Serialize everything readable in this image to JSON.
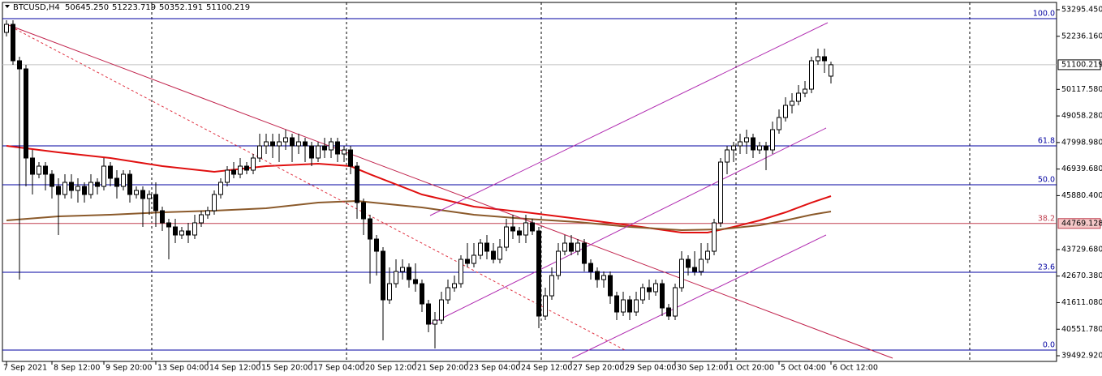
{
  "chart_data": {
    "type": "candlestick",
    "title": "BTCUSD,H4",
    "ohlc_labels": [
      "50645.250",
      "51223.719",
      "50352.191",
      "51100.219"
    ],
    "xlim": [
      -0.625,
      161.75
    ],
    "ylim": [
      39267,
      53683
    ],
    "xticks": [
      {
        "value": 0,
        "label": "7 Sep 2021"
      },
      {
        "value": 7,
        "label": "8 Sep 12:00"
      },
      {
        "value": 15,
        "label": "9 Sep 20:00"
      },
      {
        "value": 23,
        "label": "13 Sep 04:00"
      },
      {
        "value": 31,
        "label": "14 Sep 12:00"
      },
      {
        "value": 39,
        "label": "15 Sep 20:00"
      },
      {
        "value": 47,
        "label": "17 Sep 04:00"
      },
      {
        "value": 55,
        "label": "20 Sep 12:00"
      },
      {
        "value": 63,
        "label": "21 Sep 20:00"
      },
      {
        "value": 71,
        "label": "23 Sep 04:00"
      },
      {
        "value": 79,
        "label": "24 Sep 12:00"
      },
      {
        "value": 87,
        "label": "27 Sep 20:00"
      },
      {
        "value": 95,
        "label": "29 Sep 04:00"
      },
      {
        "value": 103,
        "label": "30 Sep 12:00"
      },
      {
        "value": 111,
        "label": "1 Oct 20:00"
      },
      {
        "value": 119,
        "label": "5 Oct 04:00"
      },
      {
        "value": 127,
        "label": "6 Oct 12:00"
      }
    ],
    "yticks": [
      {
        "value": 53295.45,
        "label": "53295.450"
      },
      {
        "value": 52236.16,
        "label": "52236.160"
      },
      {
        "value": 50117.58,
        "label": "50117.580"
      },
      {
        "value": 49058.28,
        "label": "49058.280"
      },
      {
        "value": 47998.98,
        "label": "47998.980"
      },
      {
        "value": 46939.68,
        "label": "46939.680"
      },
      {
        "value": 45880.4,
        "label": "45880.400"
      },
      {
        "value": 43729.68,
        "label": "43729.680"
      },
      {
        "value": 42670.38,
        "label": "42670.380"
      },
      {
        "value": 41611.08,
        "label": "41611.080"
      },
      {
        "value": 40551.78,
        "label": "40551.780"
      },
      {
        "value": 39492.92,
        "label": "39492.920"
      }
    ],
    "fib_levels": [
      {
        "value": 52940,
        "label": "100.0",
        "color": "#0000a0"
      },
      {
        "value": 47865,
        "label": "61.8",
        "color": "#0000a0"
      },
      {
        "value": 46313,
        "label": "50.0",
        "color": "#0000a0"
      },
      {
        "value": 44769.128,
        "label": "38.2",
        "color": "#c04050"
      },
      {
        "value": 42822,
        "label": "23.6",
        "color": "#0000a0"
      },
      {
        "value": 39719,
        "label": "0.0",
        "color": "#0000a0"
      }
    ],
    "series": [
      {
        "color": "#e01010",
        "x": [
          0,
          8,
          16,
          24,
          32,
          40,
          48,
          53,
          56,
          64,
          72,
          80,
          88,
          96,
          104,
          108,
          112,
          116,
          120,
          124,
          127
        ],
        "values": [
          47864,
          47606,
          47380,
          47056,
          46830,
          47056,
          47153,
          47056,
          46733,
          45925,
          45440,
          45214,
          44955,
          44697,
          44406,
          44406,
          44632,
          44891,
          45214,
          45602,
          45861
        ]
      },
      {
        "color": "#8b5a2b",
        "x": [
          0,
          8,
          16,
          24,
          32,
          40,
          48,
          54,
          64,
          72,
          80,
          88,
          96,
          104,
          110,
          116,
          120,
          124,
          127
        ],
        "values": [
          44891,
          45052,
          45117,
          45214,
          45279,
          45376,
          45602,
          45667,
          45408,
          45117,
          44955,
          44826,
          44632,
          44503,
          44535,
          44697,
          44891,
          45117,
          45247
        ]
      }
    ],
    "candles": [
      [
        52390,
        52875,
        52229,
        52713
      ],
      [
        52713,
        52875,
        51097,
        51259
      ],
      [
        51259,
        51420,
        42531,
        50935
      ],
      [
        50935,
        51097,
        46248,
        47380
      ],
      [
        47380,
        47703,
        45925,
        46733
      ],
      [
        46733,
        47218,
        46572,
        47056
      ],
      [
        47056,
        47218,
        46087,
        46733
      ],
      [
        46733,
        46895,
        45764,
        46248
      ],
      [
        46248,
        46572,
        44309,
        45925
      ],
      [
        45925,
        46733,
        45764,
        46410
      ],
      [
        46410,
        46733,
        45764,
        46087
      ],
      [
        46087,
        46572,
        45602,
        46248
      ],
      [
        46248,
        46410,
        45602,
        45925
      ],
      [
        45925,
        46733,
        45764,
        46410
      ],
      [
        46410,
        46572,
        45925,
        46248
      ],
      [
        46248,
        47380,
        46087,
        47056
      ],
      [
        47056,
        47218,
        46248,
        46572
      ],
      [
        46572,
        46895,
        45764,
        46248
      ],
      [
        46248,
        46895,
        46087,
        46733
      ],
      [
        46733,
        46895,
        45602,
        45925
      ],
      [
        45925,
        46248,
        45764,
        46087
      ],
      [
        46087,
        46248,
        44632,
        45764
      ],
      [
        45764,
        46087,
        45117,
        45925
      ],
      [
        45925,
        46410,
        44632,
        45279
      ],
      [
        45279,
        45440,
        44471,
        44794
      ],
      [
        44794,
        44955,
        43339,
        44632
      ],
      [
        44632,
        44955,
        43986,
        44309
      ],
      [
        44309,
        44632,
        44147,
        44471
      ],
      [
        44471,
        44794,
        43986,
        44309
      ],
      [
        44309,
        45117,
        44147,
        44794
      ],
      [
        44794,
        45279,
        44632,
        45117
      ],
      [
        45117,
        45440,
        44955,
        45279
      ],
      [
        45279,
        46087,
        45117,
        45925
      ],
      [
        45925,
        46572,
        45764,
        46410
      ],
      [
        46410,
        47056,
        46248,
        46895
      ],
      [
        46895,
        47218,
        46572,
        46733
      ],
      [
        46733,
        47380,
        46572,
        47056
      ],
      [
        47056,
        47218,
        46733,
        46895
      ],
      [
        46895,
        47541,
        46733,
        47380
      ],
      [
        47380,
        48349,
        47218,
        47864
      ],
      [
        47864,
        48349,
        47541,
        48026
      ],
      [
        48026,
        48349,
        47380,
        47864
      ],
      [
        47864,
        48349,
        47218,
        48026
      ],
      [
        48026,
        48511,
        47703,
        48188
      ],
      [
        48188,
        48349,
        47218,
        47864
      ],
      [
        47864,
        48349,
        47541,
        48026
      ],
      [
        48026,
        48188,
        47218,
        47864
      ],
      [
        47864,
        48026,
        47056,
        47380
      ],
      [
        47380,
        48026,
        47218,
        47864
      ],
      [
        47864,
        48188,
        47380,
        47703
      ],
      [
        47703,
        48188,
        47380,
        48026
      ],
      [
        48026,
        48188,
        47218,
        47541
      ],
      [
        47541,
        47864,
        47218,
        47703
      ],
      [
        47703,
        47864,
        46733,
        47056
      ],
      [
        47056,
        47218,
        44955,
        45602
      ],
      [
        45602,
        45764,
        44309,
        44955
      ],
      [
        44955,
        45117,
        42369,
        44147
      ],
      [
        44147,
        44309,
        42693,
        43662
      ],
      [
        43662,
        43824,
        40107,
        41723
      ],
      [
        41723,
        43016,
        41561,
        42369
      ],
      [
        42369,
        43339,
        42208,
        42854
      ],
      [
        42854,
        43339,
        42531,
        43016
      ],
      [
        43016,
        43177,
        42208,
        42531
      ],
      [
        42531,
        43177,
        42046,
        42369
      ],
      [
        42369,
        42531,
        41238,
        41561
      ],
      [
        41561,
        41723,
        40430,
        40753
      ],
      [
        40753,
        41238,
        39783,
        40915
      ],
      [
        40915,
        42046,
        40753,
        41723
      ],
      [
        41723,
        42531,
        41561,
        42208
      ],
      [
        42208,
        42693,
        42046,
        42369
      ],
      [
        42369,
        43501,
        42208,
        43339
      ],
      [
        43339,
        43986,
        43016,
        43177
      ],
      [
        43177,
        43986,
        43016,
        43501
      ],
      [
        43501,
        44147,
        43339,
        43986
      ],
      [
        43986,
        44309,
        43339,
        43662
      ],
      [
        43662,
        43986,
        43177,
        43339
      ],
      [
        43339,
        44147,
        43177,
        43824
      ],
      [
        43824,
        44955,
        43662,
        44632
      ],
      [
        44632,
        45117,
        44147,
        44471
      ],
      [
        44471,
        44632,
        43986,
        44309
      ],
      [
        44309,
        45117,
        43986,
        44794
      ],
      [
        44794,
        44955,
        44309,
        44471
      ],
      [
        44471,
        44632,
        40591,
        41076
      ],
      [
        41076,
        42208,
        40915,
        41884
      ],
      [
        41884,
        43016,
        41723,
        42693
      ],
      [
        42693,
        43986,
        42531,
        43662
      ],
      [
        43662,
        44309,
        43501,
        43986
      ],
      [
        43986,
        44309,
        43501,
        43662
      ],
      [
        43662,
        44147,
        43501,
        43986
      ],
      [
        43986,
        44147,
        42854,
        43177
      ],
      [
        43177,
        43339,
        42531,
        42854
      ],
      [
        42854,
        43016,
        42208,
        42531
      ],
      [
        42531,
        42854,
        42208,
        42693
      ],
      [
        42693,
        42854,
        41561,
        41884
      ],
      [
        41884,
        42046,
        40915,
        41238
      ],
      [
        41238,
        42046,
        41076,
        41723
      ],
      [
        41723,
        41884,
        40915,
        41238
      ],
      [
        41238,
        42046,
        41076,
        41723
      ],
      [
        41723,
        42369,
        41561,
        42208
      ],
      [
        42208,
        42531,
        41723,
        42046
      ],
      [
        42046,
        42531,
        41884,
        42369
      ],
      [
        42369,
        42531,
        41076,
        41400
      ],
      [
        41400,
        41561,
        40915,
        41076
      ],
      [
        41076,
        42369,
        40915,
        42208
      ],
      [
        42208,
        43662,
        42046,
        43339
      ],
      [
        43339,
        43501,
        42693,
        43016
      ],
      [
        43016,
        43662,
        42693,
        42854
      ],
      [
        42854,
        43986,
        42693,
        43339
      ],
      [
        43339,
        43986,
        43177,
        43662
      ],
      [
        43662,
        44955,
        43501,
        44794
      ],
      [
        44794,
        47380,
        44632,
        47218
      ],
      [
        47218,
        47864,
        46733,
        47703
      ],
      [
        47703,
        48026,
        47218,
        47864
      ],
      [
        47864,
        48349,
        47541,
        48026
      ],
      [
        48026,
        48511,
        47541,
        48188
      ],
      [
        48188,
        48349,
        47380,
        47703
      ],
      [
        47703,
        48026,
        47541,
        47864
      ],
      [
        47864,
        48026,
        46895,
        47703
      ],
      [
        47703,
        48834,
        47541,
        48511
      ],
      [
        48511,
        49319,
        48349,
        48996
      ],
      [
        48996,
        49804,
        48834,
        49481
      ],
      [
        49481,
        49966,
        49158,
        49642
      ],
      [
        49642,
        50289,
        49481,
        49966
      ],
      [
        49966,
        50451,
        49804,
        50127
      ],
      [
        50127,
        51420,
        49966,
        51259
      ],
      [
        51259,
        51743,
        51097,
        51420
      ],
      [
        51420,
        51743,
        50774,
        51259
      ],
      [
        50645.25,
        51223.719,
        50352.191,
        51100.219
      ]
    ]
  }
}
